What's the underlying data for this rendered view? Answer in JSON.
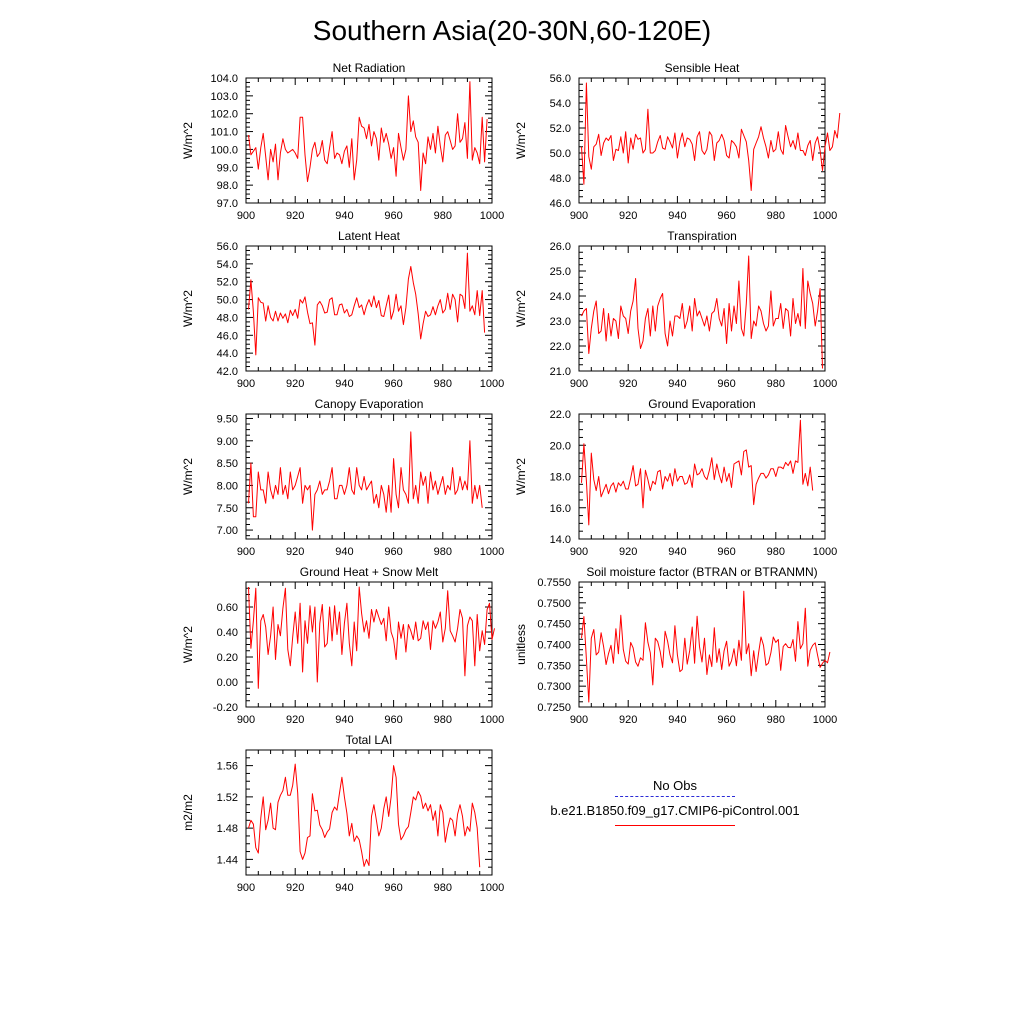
{
  "title": "Southern Asia(20-30N,60-120E)",
  "colors": {
    "model": "#ff0000",
    "obs": "#2b2bd6",
    "axis": "#000000"
  },
  "legend": {
    "obs_label": "No Obs",
    "model_label": "b.e21.B1850.f09_g17.CMIP6-piControl.001"
  },
  "chart_data": [
    {
      "type": "line",
      "title": "Net Radiation",
      "ylabel": "W/m^2",
      "xlabel": "",
      "xlim": [
        900,
        1000
      ],
      "ylim": [
        97,
        104
      ],
      "xticks": [
        900,
        920,
        940,
        960,
        980,
        1000
      ],
      "yticks": [
        97,
        98,
        99,
        100,
        101,
        102,
        103,
        104
      ],
      "ydecimals": 1,
      "x_start": 901,
      "values": [
        100.8,
        99.7,
        99.9,
        100.1,
        98.9,
        100.1,
        100.9,
        99.6,
        98.3,
        100.0,
        99.3,
        100.3,
        98.3,
        99.8,
        100.6,
        100.0,
        99.8,
        99.9,
        100.0,
        99.8,
        99.5,
        101.8,
        101.8,
        99.7,
        98.2,
        99.0,
        100.0,
        100.4,
        99.6,
        99.8,
        100.5,
        99.4,
        99.2,
        100.1,
        101.0,
        99.5,
        99.8,
        99.7,
        99.2,
        99.9,
        100.2,
        99.0,
        100.6,
        98.3,
        99.4,
        101.8,
        101.3,
        101.2,
        100.6,
        101.4,
        100.2,
        101.0,
        100.6,
        99.4,
        101.2,
        100.4,
        100.9,
        100.3,
        99.5,
        100.1,
        98.5,
        100.9,
        100.1,
        99.4,
        100.0,
        103.0,
        101.0,
        101.6,
        100.7,
        100.4,
        97.7,
        99.8,
        99.2,
        100.7,
        100.0,
        100.9,
        99.8,
        101.3,
        100.2,
        99.3,
        100.8,
        101.0,
        100.5,
        100.0,
        100.2,
        102.0,
        100.4,
        100.6,
        101.5,
        99.5,
        103.8,
        99.4,
        100.1,
        99.8,
        99.2,
        101.8,
        99.3,
        101.7
      ]
    },
    {
      "type": "line",
      "title": "Sensible Heat",
      "ylabel": "W/m^2",
      "xlabel": "",
      "xlim": [
        900,
        1000
      ],
      "ylim": [
        46,
        56
      ],
      "xticks": [
        900,
        920,
        940,
        960,
        980,
        1000
      ],
      "yticks": [
        46,
        48,
        50,
        52,
        54,
        56
      ],
      "ydecimals": 1,
      "x_start": 901,
      "values": [
        50.5,
        47.5,
        55.6,
        49.7,
        48.7,
        50.5,
        50.7,
        51.5,
        49.8,
        50.8,
        51.2,
        51.0,
        51.4,
        49.4,
        50.3,
        50.2,
        51.3,
        50.0,
        51.7,
        49.2,
        51.2,
        50.3,
        51.5,
        51.1,
        51.2,
        50.0,
        50.3,
        53.5,
        50.0,
        50.0,
        50.2,
        50.9,
        51.4,
        50.4,
        50.3,
        51.3,
        50.9,
        50.4,
        51.6,
        49.6,
        50.9,
        51.6,
        50.5,
        51.2,
        51.1,
        50.7,
        49.4,
        51.3,
        51.7,
        50.2,
        49.9,
        50.3,
        51.7,
        51.4,
        49.4,
        50.8,
        51.0,
        51.5,
        51.0,
        49.8,
        49.6,
        51.0,
        50.8,
        50.5,
        49.6,
        51.9,
        51.4,
        50.9,
        49.4,
        47.0,
        50.3,
        50.8,
        51.3,
        52.1,
        51.2,
        50.5,
        49.6,
        51.0,
        50.1,
        50.3,
        51.7,
        50.3,
        49.9,
        52.2,
        51.3,
        50.5,
        51.0,
        50.3,
        51.6,
        50.2,
        50.2,
        49.8,
        50.6,
        51.0,
        49.4,
        50.8,
        51.3,
        50.2,
        48.6,
        50.5,
        51.6,
        50.2,
        50.5,
        51.8,
        51.2,
        53.2
      ]
    },
    {
      "type": "line",
      "title": "Latent Heat",
      "ylabel": "W/m^2",
      "xlabel": "",
      "xlim": [
        900,
        1000
      ],
      "ylim": [
        42,
        56
      ],
      "xticks": [
        900,
        920,
        940,
        960,
        980,
        1000
      ],
      "yticks": [
        42,
        44,
        46,
        48,
        50,
        52,
        54,
        56
      ],
      "ydecimals": 1,
      "x_start": 901,
      "values": [
        48.9,
        52.2,
        48.6,
        43.8,
        50.2,
        49.7,
        49.6,
        47.6,
        49.3,
        48.0,
        47.6,
        48.7,
        47.6,
        48.5,
        47.9,
        48.4,
        47.4,
        48.8,
        48.2,
        48.9,
        47.9,
        50.0,
        49.6,
        50.3,
        48.6,
        47.3,
        47.4,
        44.9,
        49.4,
        49.8,
        49.3,
        48.5,
        48.6,
        50.0,
        50.2,
        48.3,
        48.3,
        49.4,
        49.5,
        48.5,
        48.9,
        48.1,
        48.3,
        49.3,
        50.2,
        49.1,
        49.4,
        48.3,
        49.3,
        50.0,
        49.2,
        50.4,
        49.1,
        49.9,
        48.2,
        48.1,
        49.3,
        50.5,
        47.8,
        48.7,
        50.6,
        48.7,
        49.3,
        47.2,
        49.1,
        52.3,
        53.7,
        51.9,
        50.6,
        48.4,
        45.6,
        47.3,
        48.7,
        48.1,
        48.3,
        49.2,
        48.3,
        49.3,
        50.0,
        48.5,
        48.9,
        50.7,
        48.9,
        50.6,
        50.0,
        47.5,
        50.6,
        50.4,
        49.0,
        55.2,
        48.7,
        49.3,
        48.3,
        51.0,
        48.2,
        51.0,
        46.3
      ]
    },
    {
      "type": "line",
      "title": "Transpiration",
      "ylabel": "W/m^2",
      "xlabel": "",
      "xlim": [
        900,
        1000
      ],
      "ylim": [
        21,
        26
      ],
      "xticks": [
        900,
        920,
        940,
        960,
        980,
        1000
      ],
      "yticks": [
        21,
        22,
        23,
        24,
        25,
        26
      ],
      "ydecimals": 1,
      "x_start": 901,
      "values": [
        23.2,
        23.4,
        23.5,
        21.7,
        22.7,
        23.4,
        23.8,
        22.5,
        22.6,
        23.5,
        22.2,
        23.3,
        22.4,
        23.1,
        23.0,
        22.3,
        23.6,
        23.2,
        23.1,
        22.5,
        23.4,
        23.8,
        24.7,
        22.7,
        21.9,
        22.2,
        23.1,
        23.5,
        22.4,
        23.6,
        22.6,
        23.6,
        23.9,
        24.1,
        22.5,
        22.0,
        23.0,
        22.4,
        23.2,
        23.2,
        23.1,
        23.7,
        22.7,
        23.0,
        23.6,
        22.6,
        23.9,
        23.2,
        23.4,
        23.1,
        22.8,
        23.2,
        22.6,
        23.3,
        23.4,
        23.9,
        23.1,
        22.8,
        23.5,
        22.1,
        23.7,
        22.6,
        23.6,
        22.9,
        24.6,
        22.7,
        22.4,
        23.7,
        25.6,
        22.3,
        23.0,
        22.8,
        23.6,
        23.4,
        22.9,
        22.6,
        22.8,
        24.2,
        22.8,
        23.1,
        23.1,
        23.7,
        22.7,
        23.5,
        23.4,
        22.4,
        23.9,
        22.9,
        23.3,
        22.8,
        25.1,
        22.7,
        24.6,
        24.1,
        23.7,
        22.8,
        23.4,
        24.3,
        21.1
      ]
    },
    {
      "type": "line",
      "title": "Canopy Evaporation",
      "ylabel": "W/m^2",
      "xlabel": "",
      "xlim": [
        900,
        1000
      ],
      "ylim": [
        6.8,
        9.6
      ],
      "xticks": [
        900,
        920,
        940,
        960,
        980,
        1000
      ],
      "yticks": [
        7.0,
        7.5,
        8.0,
        8.5,
        9.0,
        9.5
      ],
      "ydecimals": 2,
      "x_start": 901,
      "values": [
        7.6,
        8.5,
        7.3,
        7.3,
        8.3,
        7.9,
        7.9,
        7.6,
        8.3,
        7.9,
        7.7,
        8.0,
        7.8,
        8.4,
        7.8,
        8.0,
        7.7,
        8.3,
        7.9,
        8.0,
        8.2,
        8.4,
        7.6,
        8.0,
        7.9,
        8.0,
        7.0,
        7.8,
        7.9,
        8.1,
        7.8,
        7.9,
        7.9,
        8.1,
        8.4,
        7.7,
        7.7,
        8.0,
        8.0,
        7.8,
        8.0,
        8.4,
        7.9,
        7.8,
        8.4,
        8.0,
        7.9,
        8.2,
        7.9,
        8.0,
        8.1,
        7.6,
        7.8,
        7.5,
        8.0,
        7.8,
        7.4,
        8.0,
        7.4,
        8.6,
        7.8,
        7.5,
        8.4,
        7.9,
        7.8,
        7.6,
        9.2,
        7.7,
        8.0,
        7.6,
        8.3,
        8.0,
        8.2,
        7.6,
        8.3,
        7.9,
        8.1,
        7.8,
        8.0,
        8.2,
        7.8,
        8.0,
        7.9,
        8.4,
        7.8,
        7.9,
        8.2,
        7.9,
        8.1,
        7.9,
        9.0,
        7.6,
        8.0,
        7.7,
        8.0,
        7.5
      ]
    },
    {
      "type": "line",
      "title": "Ground Evaporation",
      "ylabel": "W/m^2",
      "xlabel": "",
      "xlim": [
        900,
        1000
      ],
      "ylim": [
        14,
        22
      ],
      "xticks": [
        900,
        920,
        940,
        960,
        980,
        1000
      ],
      "yticks": [
        14,
        16,
        18,
        20,
        22
      ],
      "ydecimals": 1,
      "x_start": 901,
      "values": [
        17.6,
        20.1,
        17.7,
        14.9,
        19.5,
        17.8,
        17.1,
        18.0,
        16.7,
        17.1,
        17.5,
        16.9,
        17.4,
        17.6,
        17.0,
        17.6,
        17.4,
        17.7,
        17.2,
        17.2,
        17.9,
        18.7,
        17.4,
        17.5,
        18.5,
        16.0,
        18.4,
        17.8,
        17.1,
        17.7,
        17.5,
        18.3,
        18.4,
        17.2,
        18.0,
        17.7,
        18.2,
        17.4,
        18.5,
        17.7,
        18.0,
        18.0,
        17.5,
        17.6,
        18.1,
        17.3,
        18.8,
        18.1,
        18.2,
        18.5,
        18.0,
        17.8,
        18.4,
        19.2,
        17.8,
        18.8,
        18.1,
        17.6,
        18.6,
        17.7,
        18.2,
        17.3,
        18.8,
        18.9,
        19.0,
        18.1,
        19.6,
        19.7,
        18.6,
        18.7,
        16.2,
        17.5,
        17.9,
        18.2,
        18.2,
        17.9,
        18.1,
        18.5,
        18.5,
        18.0,
        18.6,
        18.6,
        18.5,
        18.9,
        18.7,
        19.0,
        18.2,
        19.0,
        18.9,
        21.6,
        17.5,
        18.2,
        17.4,
        18.6,
        17.1
      ]
    },
    {
      "type": "line",
      "title": "Ground Heat + Snow Melt",
      "ylabel": "W/m^2",
      "xlabel": "",
      "xlim": [
        900,
        1000
      ],
      "ylim": [
        -0.2,
        0.8
      ],
      "xticks": [
        900,
        920,
        940,
        960,
        980,
        1000
      ],
      "yticks": [
        -0.2,
        0.0,
        0.2,
        0.4,
        0.6
      ],
      "ydecimals": 2,
      "x_start": 901,
      "values": [
        0.76,
        0.27,
        0.49,
        0.75,
        -0.05,
        0.49,
        0.54,
        0.44,
        0.22,
        0.37,
        0.6,
        0.18,
        0.46,
        0.37,
        0.59,
        0.75,
        0.26,
        0.13,
        0.36,
        0.56,
        0.31,
        0.63,
        0.08,
        0.49,
        0.31,
        0.61,
        0.4,
        0.6,
        0.0,
        0.47,
        0.62,
        0.28,
        0.31,
        0.6,
        0.33,
        0.61,
        0.38,
        0.56,
        0.22,
        0.47,
        0.63,
        0.31,
        0.13,
        0.48,
        0.25,
        0.76,
        0.55,
        0.4,
        0.49,
        0.35,
        0.58,
        0.48,
        0.58,
        0.52,
        0.46,
        0.51,
        0.33,
        0.6,
        0.4,
        0.34,
        0.18,
        0.48,
        0.35,
        0.46,
        0.24,
        0.46,
        0.41,
        0.34,
        0.48,
        0.33,
        0.35,
        0.49,
        0.42,
        0.48,
        0.26,
        0.49,
        0.43,
        0.48,
        0.56,
        0.32,
        0.43,
        0.73,
        0.41,
        0.37,
        0.32,
        0.43,
        0.58,
        0.51,
        0.05,
        0.45,
        0.52,
        0.49,
        0.13,
        0.54,
        0.25,
        0.41,
        0.3,
        0.58,
        0.63,
        0.34,
        0.43
      ]
    },
    {
      "type": "line",
      "title": "Soil moisture factor (BTRAN or BTRANMN)",
      "ylabel": "unitless",
      "xlabel": "",
      "xlim": [
        900,
        1000
      ],
      "ylim": [
        0.725,
        0.755
      ],
      "xticks": [
        900,
        920,
        940,
        960,
        980,
        1000
      ],
      "yticks": [
        0.725,
        0.73,
        0.735,
        0.74,
        0.745,
        0.75,
        0.755
      ],
      "ydecimals": 4,
      "x_start": 901,
      "values": [
        0.7415,
        0.7467,
        0.7365,
        0.7262,
        0.7415,
        0.7436,
        0.7375,
        0.7382,
        0.7428,
        0.7395,
        0.7352,
        0.7378,
        0.7398,
        0.7355,
        0.7438,
        0.7378,
        0.747,
        0.7388,
        0.736,
        0.7353,
        0.7405,
        0.7392,
        0.7358,
        0.7348,
        0.7368,
        0.7362,
        0.7452,
        0.7405,
        0.738,
        0.7303,
        0.7415,
        0.7407,
        0.7383,
        0.7345,
        0.7432,
        0.7408,
        0.7375,
        0.7356,
        0.7445,
        0.7375,
        0.7335,
        0.734,
        0.7415,
        0.7353,
        0.7385,
        0.7442,
        0.7355,
        0.7468,
        0.7395,
        0.7358,
        0.7415,
        0.7328,
        0.7375,
        0.7347,
        0.744,
        0.7357,
        0.739,
        0.734,
        0.7385,
        0.7408,
        0.7348,
        0.7361,
        0.739,
        0.7349,
        0.741,
        0.7362,
        0.7528,
        0.7378,
        0.7402,
        0.7325,
        0.7385,
        0.7335,
        0.738,
        0.7418,
        0.7398,
        0.735,
        0.7355,
        0.738,
        0.7418,
        0.7405,
        0.7412,
        0.7338,
        0.7395,
        0.7402,
        0.7393,
        0.7392,
        0.7412,
        0.736,
        0.7455,
        0.739,
        0.7402,
        0.7487,
        0.7348,
        0.7386,
        0.7398,
        0.7404,
        0.7374,
        0.7345,
        0.7355,
        0.7362,
        0.7356,
        0.7382
      ]
    },
    {
      "type": "line",
      "title": "Total LAI",
      "ylabel": "m2/m2",
      "xlabel": "",
      "xlim": [
        900,
        1000
      ],
      "ylim": [
        1.42,
        1.58
      ],
      "xticks": [
        900,
        920,
        940,
        960,
        980,
        1000
      ],
      "yticks": [
        1.44,
        1.48,
        1.52,
        1.56
      ],
      "ydecimals": 2,
      "x_start": 901,
      "values": [
        1.48,
        1.49,
        1.485,
        1.455,
        1.448,
        1.493,
        1.52,
        1.478,
        1.49,
        1.512,
        1.48,
        1.478,
        1.513,
        1.522,
        1.528,
        1.545,
        1.522,
        1.522,
        1.535,
        1.562,
        1.525,
        1.45,
        1.44,
        1.448,
        1.468,
        1.47,
        1.524,
        1.502,
        1.503,
        1.484,
        1.478,
        1.468,
        1.475,
        1.479,
        1.5,
        1.507,
        1.503,
        1.525,
        1.545,
        1.52,
        1.499,
        1.47,
        1.486,
        1.463,
        1.47,
        1.465,
        1.45,
        1.431,
        1.44,
        1.432,
        1.495,
        1.51,
        1.49,
        1.47,
        1.48,
        1.505,
        1.52,
        1.495,
        1.52,
        1.56,
        1.545,
        1.485,
        1.465,
        1.47,
        1.478,
        1.482,
        1.5,
        1.52,
        1.516,
        1.527,
        1.521,
        1.505,
        1.512,
        1.502,
        1.51,
        1.49,
        1.502,
        1.47,
        1.51,
        1.5,
        1.462,
        1.48,
        1.493,
        1.49,
        1.47,
        1.498,
        1.51,
        1.495,
        1.47,
        1.482,
        1.476,
        1.512,
        1.5,
        1.48,
        1.43
      ]
    }
  ]
}
